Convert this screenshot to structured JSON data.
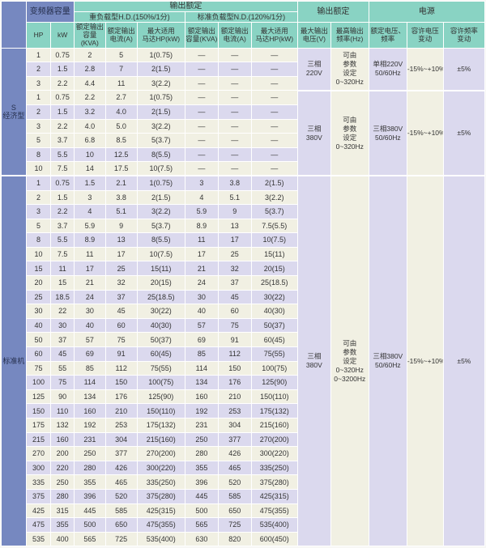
{
  "colors": {
    "header_blue": "#7688c0",
    "header_teal": "#89d3c3",
    "row_beige": "#f1f0e3",
    "row_lavender": "#dbd9ee",
    "border_white": "#ffffff",
    "text_dark": "#333333"
  },
  "table": {
    "header": {
      "capacity": "变频器容量",
      "output_rating": "输出额定",
      "heavy_duty": "重负载型H.D.(150%/1分)",
      "normal_duty": "标准负载型N.D.(120%/1分)",
      "output_rating2": "输出额定",
      "power": "电源",
      "columns": [
        "HP",
        "kW",
        "额定输出\n容量(KVA)",
        "额定输出\n电流(A)",
        "最大适用\n马达HP(kW)",
        "额定输出\n容量(KVA)",
        "额定输出\n电流(A)",
        "最大适用\n马达HP(kW)",
        "最大输出\n电压(V)",
        "最高输出\n频率(Hz)",
        "额定电压、\n频率",
        "容许电压\n变动",
        "容许频率\n变动"
      ]
    },
    "sections": [
      {
        "label": "S\n经济型",
        "row_shading": [
          "beige",
          "lav",
          "beige",
          "beige",
          "lav",
          "beige",
          "beige",
          "lav",
          "beige"
        ],
        "rows": [
          [
            "1",
            "0.75",
            "2",
            "5",
            "1(0.75)",
            "—",
            "—",
            "—"
          ],
          [
            "2",
            "1.5",
            "2.8",
            "7",
            "2(1.5)",
            "—",
            "—",
            "—"
          ],
          [
            "3",
            "2.2",
            "4.4",
            "11",
            "3(2.2)",
            "—",
            "—",
            "—"
          ],
          [
            "1",
            "0.75",
            "2.2",
            "2.7",
            "1(0.75)",
            "—",
            "—",
            "—"
          ],
          [
            "2",
            "1.5",
            "3.2",
            "4.0",
            "2(1.5)",
            "—",
            "—",
            "—"
          ],
          [
            "3",
            "2.2",
            "4.0",
            "5.0",
            "3(2.2)",
            "—",
            "—",
            "—"
          ],
          [
            "5",
            "3.7",
            "6.8",
            "8.5",
            "5(3.7)",
            "—",
            "—",
            "—"
          ],
          [
            "8",
            "5.5",
            "10",
            "12.5",
            "8(5.5)",
            "—",
            "—",
            "—"
          ],
          [
            "10",
            "7.5",
            "14",
            "17.5",
            "10(7.5)",
            "—",
            "—",
            "—"
          ]
        ],
        "groups": [
          {
            "start": 0,
            "span": 3,
            "voltage": "三相\n220V",
            "frequency": "可由\n参数\n设定\n0~320Hz",
            "supply": "单相220V\n50/60Hz",
            "voltage_tolerance": "-15%~+10%",
            "frequency_tolerance": "±5%"
          },
          {
            "start": 3,
            "span": 6,
            "voltage": "三相\n380V",
            "frequency": "可由\n参数\n设定\n0~320Hz",
            "supply": "三相380V\n50/60Hz",
            "voltage_tolerance": "-15%~+10%",
            "frequency_tolerance": "±5%"
          }
        ]
      },
      {
        "label": "标准机",
        "row_shading": [
          "lav",
          "beige",
          "lav",
          "beige",
          "lav",
          "beige",
          "lav",
          "beige",
          "lav",
          "beige",
          "lav",
          "beige",
          "lav",
          "beige",
          "lav",
          "beige",
          "lav",
          "beige",
          "lav",
          "beige",
          "lav",
          "beige",
          "lav",
          "beige",
          "lav",
          "beige"
        ],
        "rows": [
          [
            "1",
            "0.75",
            "1.5",
            "2.1",
            "1(0.75)",
            "3",
            "3.8",
            "2(1.5)"
          ],
          [
            "2",
            "1.5",
            "3",
            "3.8",
            "2(1.5)",
            "4",
            "5.1",
            "3(2.2)"
          ],
          [
            "3",
            "2.2",
            "4",
            "5.1",
            "3(2.2)",
            "5.9",
            "9",
            "5(3.7)"
          ],
          [
            "5",
            "3.7",
            "5.9",
            "9",
            "5(3.7)",
            "8.9",
            "13",
            "7.5(5.5)"
          ],
          [
            "8",
            "5.5",
            "8.9",
            "13",
            "8(5.5)",
            "11",
            "17",
            "10(7.5)"
          ],
          [
            "10",
            "7.5",
            "11",
            "17",
            "10(7.5)",
            "17",
            "25",
            "15(11)"
          ],
          [
            "15",
            "11",
            "17",
            "25",
            "15(11)",
            "21",
            "32",
            "20(15)"
          ],
          [
            "20",
            "15",
            "21",
            "32",
            "20(15)",
            "24",
            "37",
            "25(18.5)"
          ],
          [
            "25",
            "18.5",
            "24",
            "37",
            "25(18.5)",
            "30",
            "45",
            "30(22)"
          ],
          [
            "30",
            "22",
            "30",
            "45",
            "30(22)",
            "40",
            "60",
            "40(30)"
          ],
          [
            "40",
            "30",
            "40",
            "60",
            "40(30)",
            "57",
            "75",
            "50(37)"
          ],
          [
            "50",
            "37",
            "57",
            "75",
            "50(37)",
            "69",
            "91",
            "60(45)"
          ],
          [
            "60",
            "45",
            "69",
            "91",
            "60(45)",
            "85",
            "112",
            "75(55)"
          ],
          [
            "75",
            "55",
            "85",
            "112",
            "75(55)",
            "114",
            "150",
            "100(75)"
          ],
          [
            "100",
            "75",
            "114",
            "150",
            "100(75)",
            "134",
            "176",
            "125(90)"
          ],
          [
            "125",
            "90",
            "134",
            "176",
            "125(90)",
            "160",
            "210",
            "150(110)"
          ],
          [
            "150",
            "110",
            "160",
            "210",
            "150(110)",
            "192",
            "253",
            "175(132)"
          ],
          [
            "175",
            "132",
            "192",
            "253",
            "175(132)",
            "231",
            "304",
            "215(160)"
          ],
          [
            "215",
            "160",
            "231",
            "304",
            "215(160)",
            "250",
            "377",
            "270(200)"
          ],
          [
            "270",
            "200",
            "250",
            "377",
            "270(200)",
            "280",
            "426",
            "300(220)"
          ],
          [
            "300",
            "220",
            "280",
            "426",
            "300(220)",
            "355",
            "465",
            "335(250)"
          ],
          [
            "335",
            "250",
            "355",
            "465",
            "335(250)",
            "396",
            "520",
            "375(280)"
          ],
          [
            "375",
            "280",
            "396",
            "520",
            "375(280)",
            "445",
            "585",
            "425(315)"
          ],
          [
            "425",
            "315",
            "445",
            "585",
            "425(315)",
            "500",
            "650",
            "475(355)"
          ],
          [
            "475",
            "355",
            "500",
            "650",
            "475(355)",
            "565",
            "725",
            "535(400)"
          ],
          [
            "535",
            "400",
            "565",
            "725",
            "535(400)",
            "630",
            "820",
            "600(450)"
          ]
        ],
        "groups": [
          {
            "start": 0,
            "span": 26,
            "voltage": "三相\n380V",
            "frequency": "可由\n参数\n设定\n0~320Hz\n0~3200Hz",
            "supply": "三相380V\n50/60Hz",
            "voltage_tolerance": "-15%~+10%",
            "frequency_tolerance": "±5%"
          }
        ]
      }
    ]
  }
}
